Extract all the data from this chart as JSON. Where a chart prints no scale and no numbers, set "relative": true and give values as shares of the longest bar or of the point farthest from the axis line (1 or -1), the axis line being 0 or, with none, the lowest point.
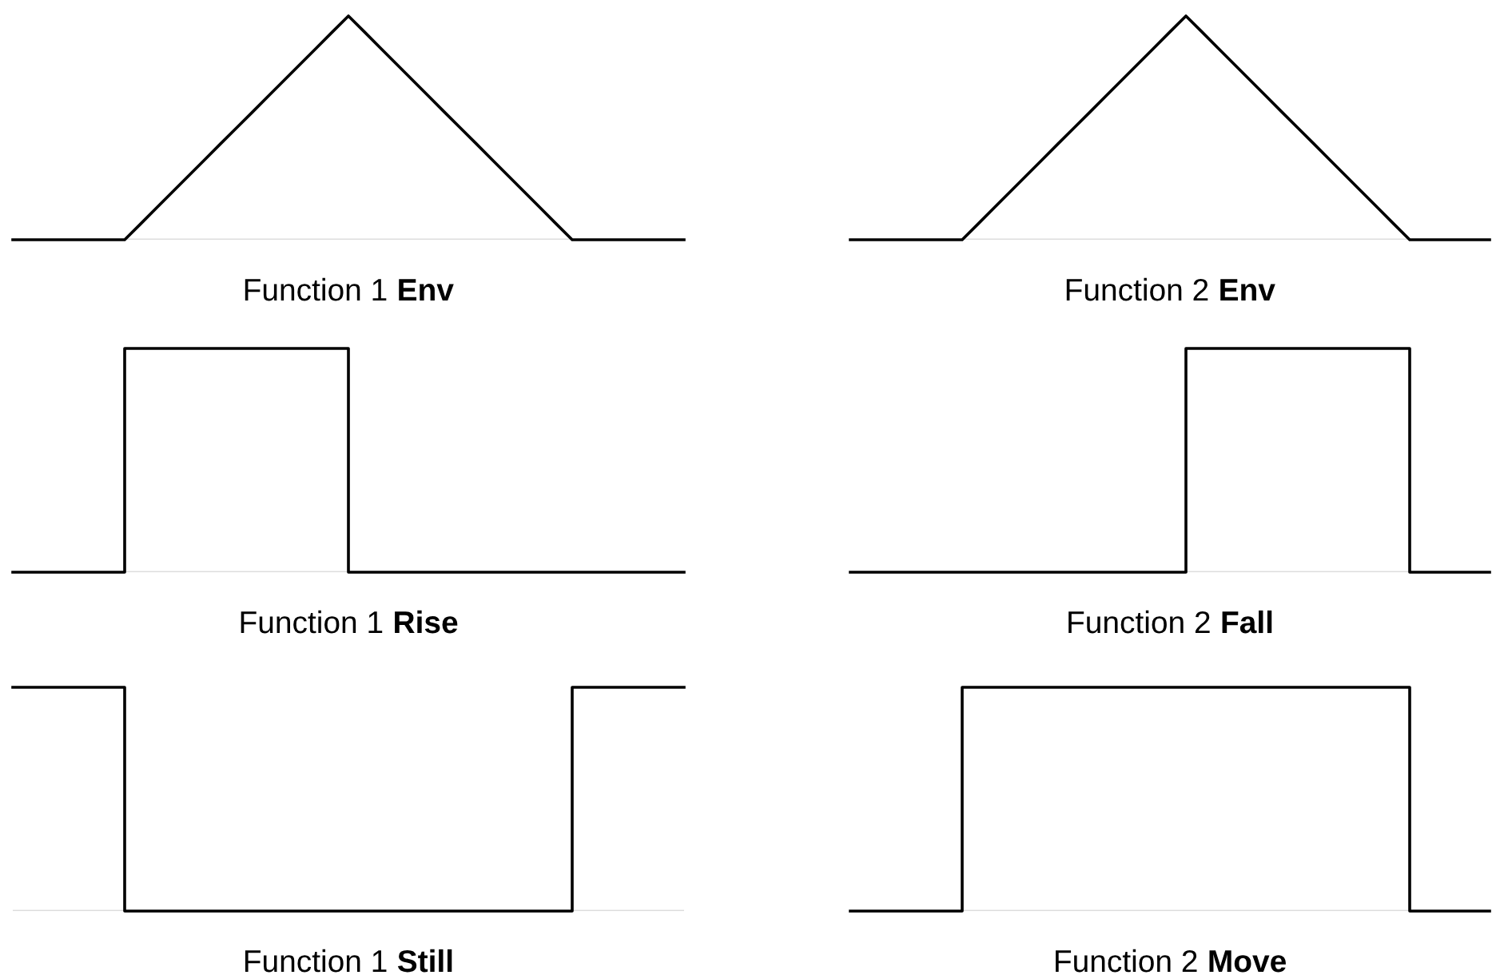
{
  "chart_data": [
    {
      "type": "line",
      "title": "Function 1 Env",
      "relative": true,
      "categories": [
        null,
        null,
        null,
        null,
        null,
        null,
        null,
        null,
        null,
        null,
        null,
        null,
        null,
        null,
        null,
        null,
        null,
        null,
        null,
        null,
        null,
        null,
        null,
        null,
        null,
        null,
        null,
        null,
        null,
        null,
        null,
        null,
        null,
        null,
        null,
        null,
        null,
        null,
        null,
        null,
        null,
        null,
        null
      ],
      "series": [
        {
          "color": "#000000",
          "values": [
            0,
            0,
            0,
            0,
            0,
            0,
            0,
            0,
            0.071,
            0.143,
            0.214,
            0.286,
            0.357,
            0.429,
            0.5,
            0.571,
            0.643,
            0.714,
            0.786,
            0.857,
            0.929,
            1,
            0.929,
            0.857,
            0.786,
            0.714,
            0.643,
            0.571,
            0.5,
            0.429,
            0.357,
            0.286,
            0.214,
            0.143,
            0.071,
            0,
            0,
            0,
            0,
            0,
            0,
            0,
            0
          ]
        }
      ]
    },
    {
      "type": "line",
      "title": "Function 2 Env",
      "relative": true,
      "categories": [
        null,
        null,
        null,
        null,
        null,
        null,
        null,
        null,
        null,
        null,
        null,
        null,
        null,
        null,
        null,
        null,
        null,
        null,
        null,
        null,
        null,
        null,
        null,
        null,
        null,
        null,
        null,
        null,
        null,
        null,
        null,
        null,
        null,
        null,
        null,
        null,
        null,
        null,
        null,
        null,
        null
      ],
      "series": [
        {
          "color": "#000000",
          "values": [
            0,
            0,
            0,
            0,
            0,
            0,
            0,
            0,
            0.071,
            0.143,
            0.214,
            0.286,
            0.357,
            0.429,
            0.5,
            0.571,
            0.643,
            0.714,
            0.786,
            0.857,
            0.929,
            1,
            0.929,
            0.857,
            0.786,
            0.714,
            0.643,
            0.571,
            0.5,
            0.429,
            0.357,
            0.286,
            0.214,
            0.143,
            0.071,
            0,
            0,
            0,
            0,
            0,
            0
          ]
        }
      ]
    },
    {
      "type": "step",
      "title": "Function 1 Rise",
      "relative": true,
      "categories": [
        null,
        null,
        null,
        null,
        null,
        null,
        null,
        null,
        null,
        null,
        null,
        null,
        null,
        null,
        null,
        null,
        null,
        null,
        null,
        null,
        null,
        null,
        null,
        null,
        null,
        null,
        null,
        null,
        null,
        null,
        null,
        null,
        null,
        null,
        null,
        null,
        null,
        null,
        null,
        null,
        null,
        null,
        null
      ],
      "series": [
        {
          "color": "#000000",
          "values": [
            0,
            0,
            0,
            0,
            0,
            0,
            0,
            1,
            1,
            1,
            1,
            1,
            1,
            1,
            1,
            1,
            1,
            1,
            1,
            1,
            1,
            0,
            0,
            0,
            0,
            0,
            0,
            0,
            0,
            0,
            0,
            0,
            0,
            0,
            0,
            0,
            0,
            0,
            0,
            0,
            0,
            0,
            0
          ]
        }
      ]
    },
    {
      "type": "step",
      "title": "Function 2 Fall",
      "relative": true,
      "categories": [
        null,
        null,
        null,
        null,
        null,
        null,
        null,
        null,
        null,
        null,
        null,
        null,
        null,
        null,
        null,
        null,
        null,
        null,
        null,
        null,
        null,
        null,
        null,
        null,
        null,
        null,
        null,
        null,
        null,
        null,
        null,
        null,
        null,
        null,
        null,
        null,
        null,
        null,
        null,
        null,
        null
      ],
      "series": [
        {
          "color": "#000000",
          "values": [
            0,
            0,
            0,
            0,
            0,
            0,
            0,
            0,
            0,
            0,
            0,
            0,
            0,
            0,
            0,
            0,
            0,
            0,
            0,
            0,
            0,
            1,
            1,
            1,
            1,
            1,
            1,
            1,
            1,
            1,
            1,
            1,
            1,
            1,
            1,
            0,
            0,
            0,
            0,
            0,
            0
          ]
        }
      ]
    },
    {
      "type": "step",
      "title": "Function 1 Still",
      "relative": true,
      "categories": [
        null,
        null,
        null,
        null,
        null,
        null,
        null,
        null,
        null,
        null,
        null,
        null,
        null,
        null,
        null,
        null,
        null,
        null,
        null,
        null,
        null,
        null,
        null,
        null,
        null,
        null,
        null,
        null,
        null,
        null,
        null,
        null,
        null,
        null,
        null,
        null,
        null,
        null,
        null,
        null,
        null,
        null,
        null
      ],
      "series": [
        {
          "color": "#000000",
          "values": [
            1,
            1,
            1,
            1,
            1,
            1,
            1,
            0,
            0,
            0,
            0,
            0,
            0,
            0,
            0,
            0,
            0,
            0,
            0,
            0,
            0,
            0,
            0,
            0,
            0,
            0,
            0,
            0,
            0,
            0,
            0,
            0,
            0,
            0,
            0,
            1,
            1,
            1,
            1,
            1,
            1,
            1,
            1
          ]
        }
      ]
    },
    {
      "type": "step",
      "title": "Function 2 Move",
      "relative": true,
      "categories": [
        null,
        null,
        null,
        null,
        null,
        null,
        null,
        null,
        null,
        null,
        null,
        null,
        null,
        null,
        null,
        null,
        null,
        null,
        null,
        null,
        null,
        null,
        null,
        null,
        null,
        null,
        null,
        null,
        null,
        null,
        null,
        null,
        null,
        null,
        null,
        null,
        null,
        null,
        null,
        null,
        null
      ],
      "series": [
        {
          "color": "#000000",
          "values": [
            0,
            0,
            0,
            0,
            0,
            0,
            0,
            1,
            1,
            1,
            1,
            1,
            1,
            1,
            1,
            1,
            1,
            1,
            1,
            1,
            1,
            1,
            1,
            1,
            1,
            1,
            1,
            1,
            1,
            1,
            1,
            1,
            1,
            1,
            1,
            0,
            0,
            0,
            0,
            0,
            0
          ]
        }
      ]
    }
  ]
}
